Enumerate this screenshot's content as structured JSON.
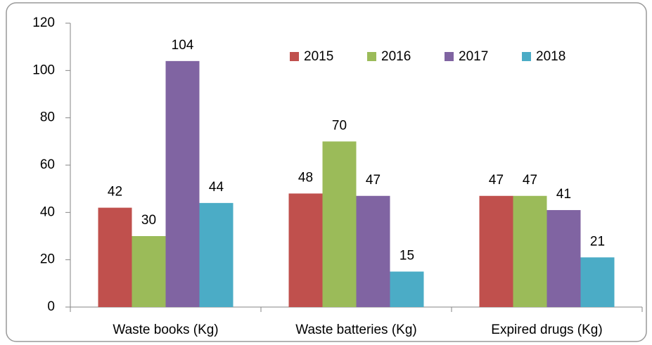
{
  "chart_data": {
    "type": "bar",
    "categories": [
      "Waste books (Kg)",
      "Waste batteries (Kg)",
      "Expired drugs (Kg)"
    ],
    "series": [
      {
        "name": "2015",
        "color": "#c0504d",
        "values": [
          42,
          48,
          47
        ]
      },
      {
        "name": "2016",
        "color": "#9bbb59",
        "values": [
          30,
          70,
          47
        ]
      },
      {
        "name": "2017",
        "color": "#8064a2",
        "values": [
          104,
          47,
          41
        ]
      },
      {
        "name": "2018",
        "color": "#4bacc6",
        "values": [
          44,
          15,
          21
        ]
      }
    ],
    "ylim": [
      0,
      120
    ],
    "yticks": [
      0,
      20,
      40,
      60,
      80,
      100,
      120
    ],
    "grid": false,
    "legend": "top-right",
    "data_labels": true
  }
}
